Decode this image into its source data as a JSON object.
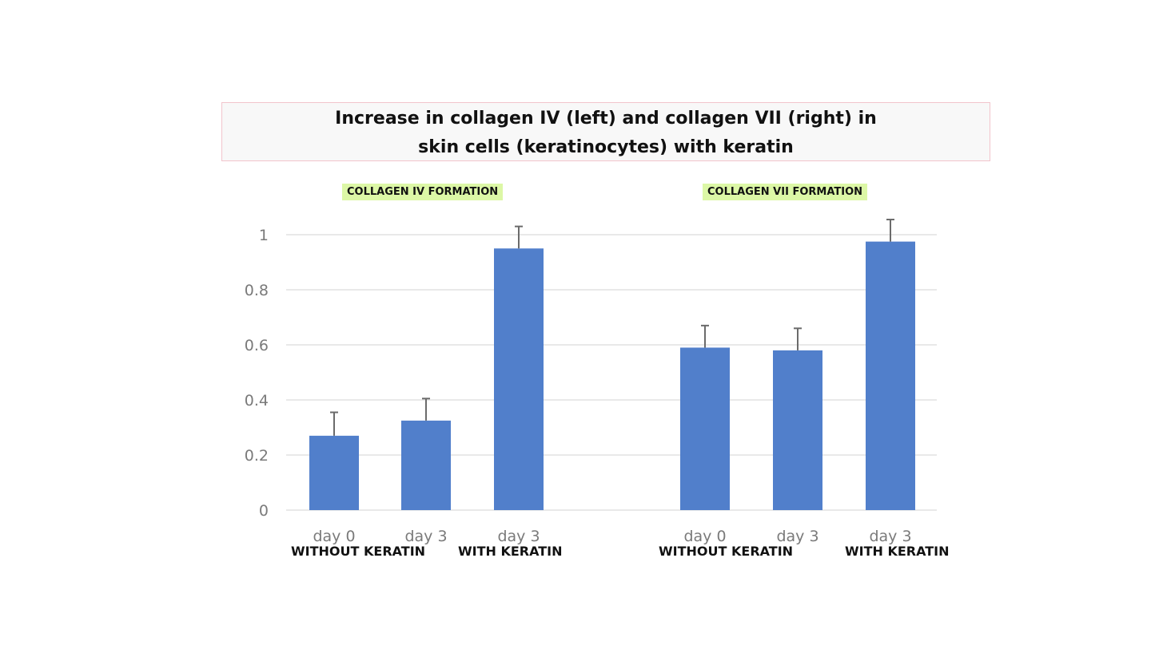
{
  "title": {
    "line1": "Increase in collagen IV (left) and collagen VII (right) in",
    "line2": "skin cells (keratinocytes) with keratin"
  },
  "colors": {
    "bar": "#517fcb",
    "error_bar": "#6b6b6b",
    "grid": "#dcdcdc",
    "tick_label": "#7a7a7a",
    "panel_title_bg": "#dcf7a6"
  },
  "chart_data": [
    {
      "type": "bar",
      "title": "COLLAGEN IV FORMATION",
      "categories": [
        "day 0",
        "day 3",
        "day 3"
      ],
      "values": [
        0.27,
        0.325,
        0.95
      ],
      "error_plus": [
        0.085,
        0.08,
        0.08
      ],
      "group_labels": [
        "WITHOUT KERATIN",
        "WITH KERATIN"
      ],
      "ylim": [
        0,
        1
      ],
      "yticks": [
        "0",
        "0.2",
        "0.4",
        "0.6",
        "0.8",
        "1"
      ],
      "grid": true
    },
    {
      "type": "bar",
      "title": "COLLAGEN VII FORMATION",
      "categories": [
        "day 0",
        "day 3",
        "day 3"
      ],
      "values": [
        0.59,
        0.58,
        0.975
      ],
      "error_plus": [
        0.08,
        0.08,
        0.08
      ],
      "group_labels": [
        "WITHOUT KERATIN",
        "WITH KERATIN"
      ],
      "ylim": [
        0,
        1
      ],
      "grid": true
    }
  ]
}
